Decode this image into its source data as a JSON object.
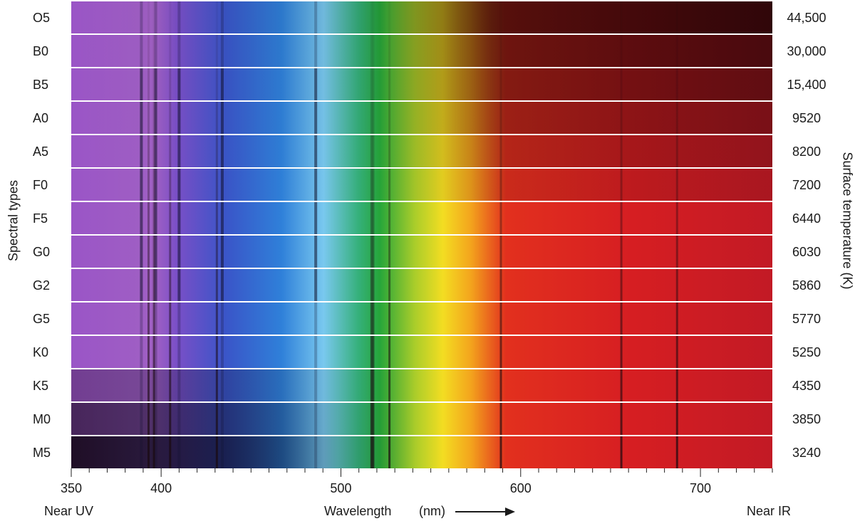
{
  "left_axis_title": "Spectral types",
  "right_axis_title": "Surface temperature (K)",
  "rows": [
    {
      "type": "O5",
      "temperature": "44,500"
    },
    {
      "type": "B0",
      "temperature": "30,000"
    },
    {
      "type": "B5",
      "temperature": "15,400"
    },
    {
      "type": "A0",
      "temperature": "9520"
    },
    {
      "type": "A5",
      "temperature": "8200"
    },
    {
      "type": "F0",
      "temperature": "7200"
    },
    {
      "type": "F5",
      "temperature": "6440"
    },
    {
      "type": "G0",
      "temperature": "6030"
    },
    {
      "type": "G2",
      "temperature": "5860"
    },
    {
      "type": "G5",
      "temperature": "5770"
    },
    {
      "type": "K0",
      "temperature": "5250"
    },
    {
      "type": "K5",
      "temperature": "4350"
    },
    {
      "type": "M0",
      "temperature": "3850"
    },
    {
      "type": "M5",
      "temperature": "3240"
    }
  ],
  "x_axis": {
    "title": "Wavelength",
    "unit": "(nm)",
    "range": [
      350,
      740
    ],
    "ticks": [
      "350",
      "400",
      "500",
      "600",
      "700"
    ],
    "left_end_label": "Near UV",
    "right_end_label": "Near IR"
  }
}
